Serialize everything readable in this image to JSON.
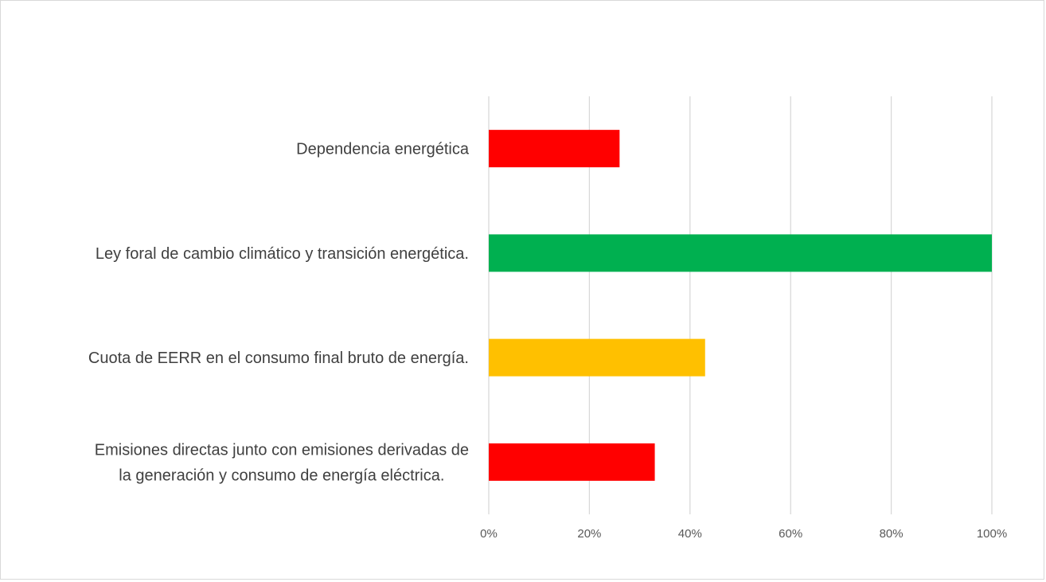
{
  "chart_data": {
    "type": "bar",
    "orientation": "horizontal",
    "categories": [
      [
        "Dependencia energética"
      ],
      [
        "Ley foral de cambio climático y transición energética."
      ],
      [
        "Cuota de EERR en el consumo final bruto de energía."
      ],
      [
        "Emisiones directas junto con emisiones derivadas de",
        "la generación y consumo de energía eléctrica."
      ]
    ],
    "values": [
      0.26,
      1.0,
      0.43,
      0.33
    ],
    "bar_colors": [
      "#ff0000",
      "#00b050",
      "#ffc000",
      "#ff0000"
    ],
    "xlim": [
      0,
      1
    ],
    "x_ticks": [
      0,
      0.2,
      0.4,
      0.6,
      0.8,
      1.0
    ],
    "x_tick_labels": [
      "0%",
      "20%",
      "40%",
      "60%",
      "80%",
      "100%"
    ],
    "grid": "vertical",
    "legend": "none",
    "title": "",
    "xlabel": "",
    "ylabel": ""
  }
}
